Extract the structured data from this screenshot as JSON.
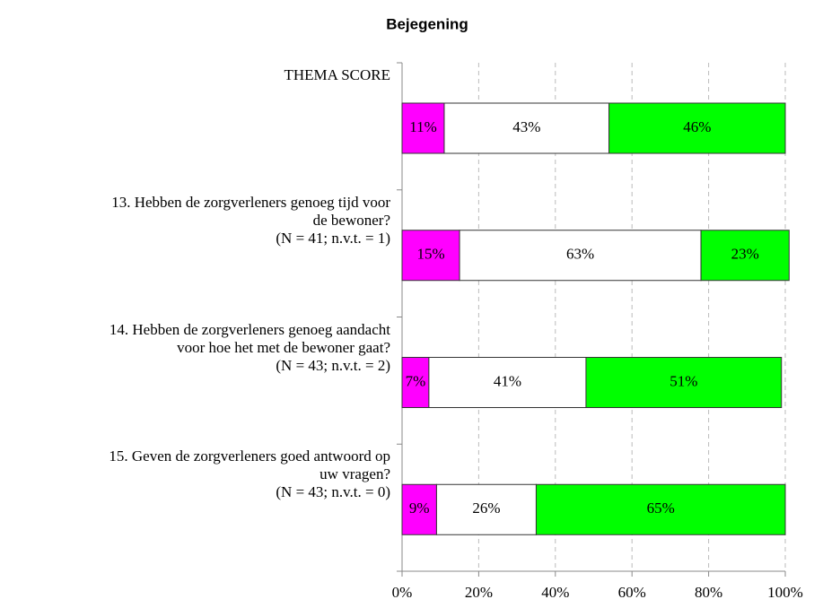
{
  "chart_data": {
    "type": "stacked_barh",
    "title": "Bejegening",
    "categories": [
      "THEMA SCORE",
      "13. Hebben de zorgverleners genoeg tijd voor\nde bewoner?\n(N = 41; n.v.t. = 1)",
      "14. Hebben de zorgverleners genoeg aandacht\nvoor hoe het met de bewoner gaat?\n(N = 43; n.v.t. = 2)",
      "15. Geven de zorgverleners goed antwoord op\nuw vragen?\n(N = 43; n.v.t. = 0)"
    ],
    "series": [
      {
        "color": "#ff00ff",
        "values": [
          11,
          15,
          7,
          9
        ],
        "value_labels": [
          "11%",
          "15%",
          "7%",
          "9%"
        ]
      },
      {
        "color": "#ffffff",
        "values": [
          43,
          63,
          41,
          26
        ],
        "value_labels": [
          "43%",
          "63%",
          "41%",
          "26%"
        ]
      },
      {
        "color": "#00ff00",
        "values": [
          46,
          23,
          51,
          65
        ],
        "value_labels": [
          "46%",
          "23%",
          "51%",
          "65%"
        ]
      }
    ],
    "xlim": [
      0,
      100
    ],
    "xticks": [
      {
        "value": 0,
        "label": "0%"
      },
      {
        "value": 20,
        "label": "20%"
      },
      {
        "value": 40,
        "label": "40%"
      },
      {
        "value": 60,
        "label": "60%"
      },
      {
        "value": 80,
        "label": "80%"
      },
      {
        "value": 100,
        "label": "100%"
      }
    ],
    "grid": true
  }
}
